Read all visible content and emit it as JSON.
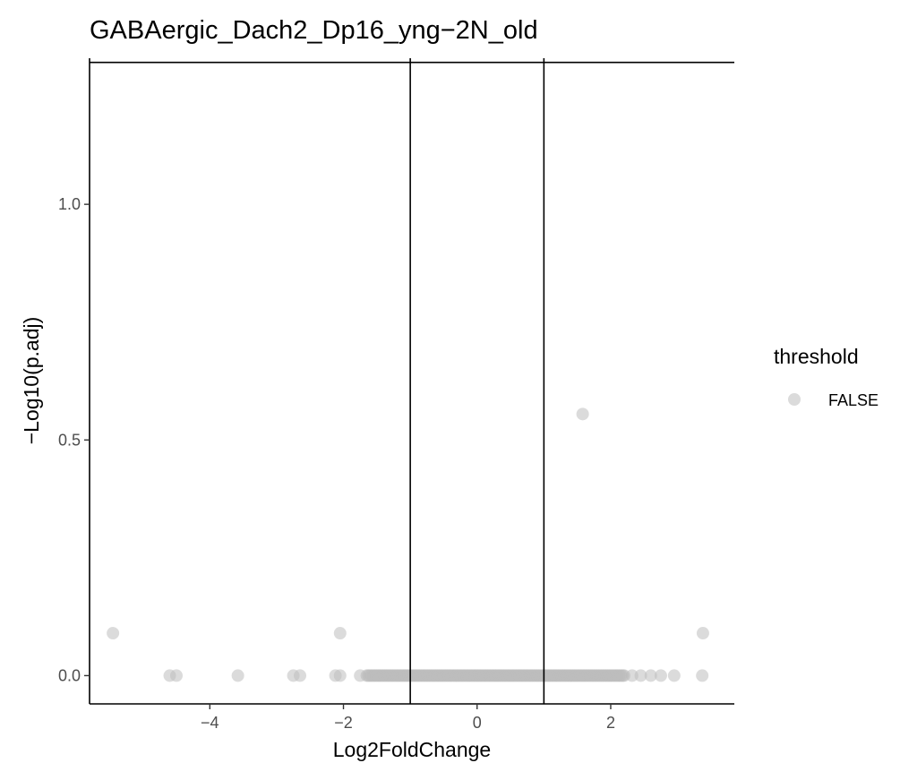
{
  "chart_data": {
    "type": "scatter",
    "title": "GABAergic_Dach2_Dp16_yng−2N_old",
    "xlabel": "Log2FoldChange",
    "ylabel": "−Log10(p.adj)",
    "xlim": [
      -5.8,
      3.85
    ],
    "ylim": [
      -0.06,
      1.31
    ],
    "x_ticks": [
      -4,
      -2,
      0,
      2
    ],
    "x_tick_labels": [
      "−4",
      "−2",
      "0",
      "2"
    ],
    "y_ticks": [
      0.0,
      0.5,
      1.0
    ],
    "y_tick_labels": [
      "0.0",
      "0.5",
      "1.0"
    ],
    "grid": false,
    "reference_lines": {
      "vertical": [
        -1,
        1
      ],
      "horizontal": [
        1.30103
      ]
    },
    "legend": {
      "title": "threshold",
      "position": "right",
      "entries": [
        {
          "label": "FALSE",
          "color": "#bdbdbd"
        }
      ]
    },
    "series": [
      {
        "name": "FALSE",
        "color": "#bdbdbd",
        "points": [
          {
            "x": -5.45,
            "y": 0.09
          },
          {
            "x": -2.05,
            "y": 0.09
          },
          {
            "x": 1.58,
            "y": 0.555
          },
          {
            "x": 3.38,
            "y": 0.09
          },
          {
            "x": -4.6,
            "y": 0.0
          },
          {
            "x": -4.5,
            "y": 0.0
          },
          {
            "x": -3.58,
            "y": 0.0
          },
          {
            "x": -2.75,
            "y": 0.0
          },
          {
            "x": -2.65,
            "y": 0.0
          },
          {
            "x": -2.12,
            "y": 0.0
          },
          {
            "x": -2.05,
            "y": 0.0
          },
          {
            "x": -1.75,
            "y": 0.0
          },
          {
            "x": 2.32,
            "y": 0.0
          },
          {
            "x": 2.45,
            "y": 0.0
          },
          {
            "x": 2.6,
            "y": 0.0
          },
          {
            "x": 2.75,
            "y": 0.0
          },
          {
            "x": 2.95,
            "y": 0.0
          },
          {
            "x": 3.37,
            "y": 0.0
          }
        ],
        "dense_band": {
          "y": 0.0,
          "x_from": -1.65,
          "x_to": 2.2
        }
      }
    ]
  }
}
